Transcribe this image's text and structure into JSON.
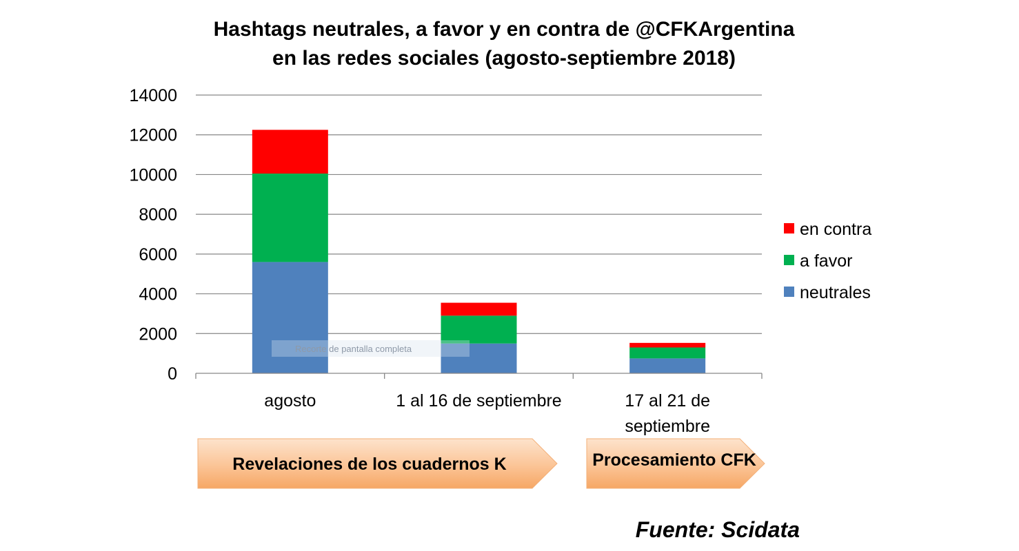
{
  "chart_data": {
    "type": "bar",
    "stacked": true,
    "title": [
      "Hashtags neutrales, a favor y en contra de @CFKArgentina",
      "en las redes sociales (agosto-septiembre 2018)"
    ],
    "categories": [
      [
        "agosto"
      ],
      [
        "1 al 16 de septiembre"
      ],
      [
        "17 al 21 de",
        "septiembre"
      ]
    ],
    "series": [
      {
        "name": "neutrales",
        "color": "#4f81bd",
        "values": [
          5600,
          1500,
          750
        ]
      },
      {
        "name": "a favor",
        "color": "#00b050",
        "values": [
          4450,
          1400,
          550
        ]
      },
      {
        "name": "en contra",
        "color": "#ff0000",
        "values": [
          2200,
          650,
          230
        ]
      }
    ],
    "ylim": [
      0,
      14000
    ],
    "yticks": [
      0,
      2000,
      4000,
      6000,
      8000,
      10000,
      12000,
      14000
    ],
    "grid": true,
    "legend_position": "right"
  },
  "overlay_text": "Recorte de pantalla completa",
  "phases": [
    {
      "label": "Revelaciones de los cuadernos K"
    },
    {
      "label": "Procesamiento CFK"
    }
  ],
  "source": "Fuente: Scidata"
}
